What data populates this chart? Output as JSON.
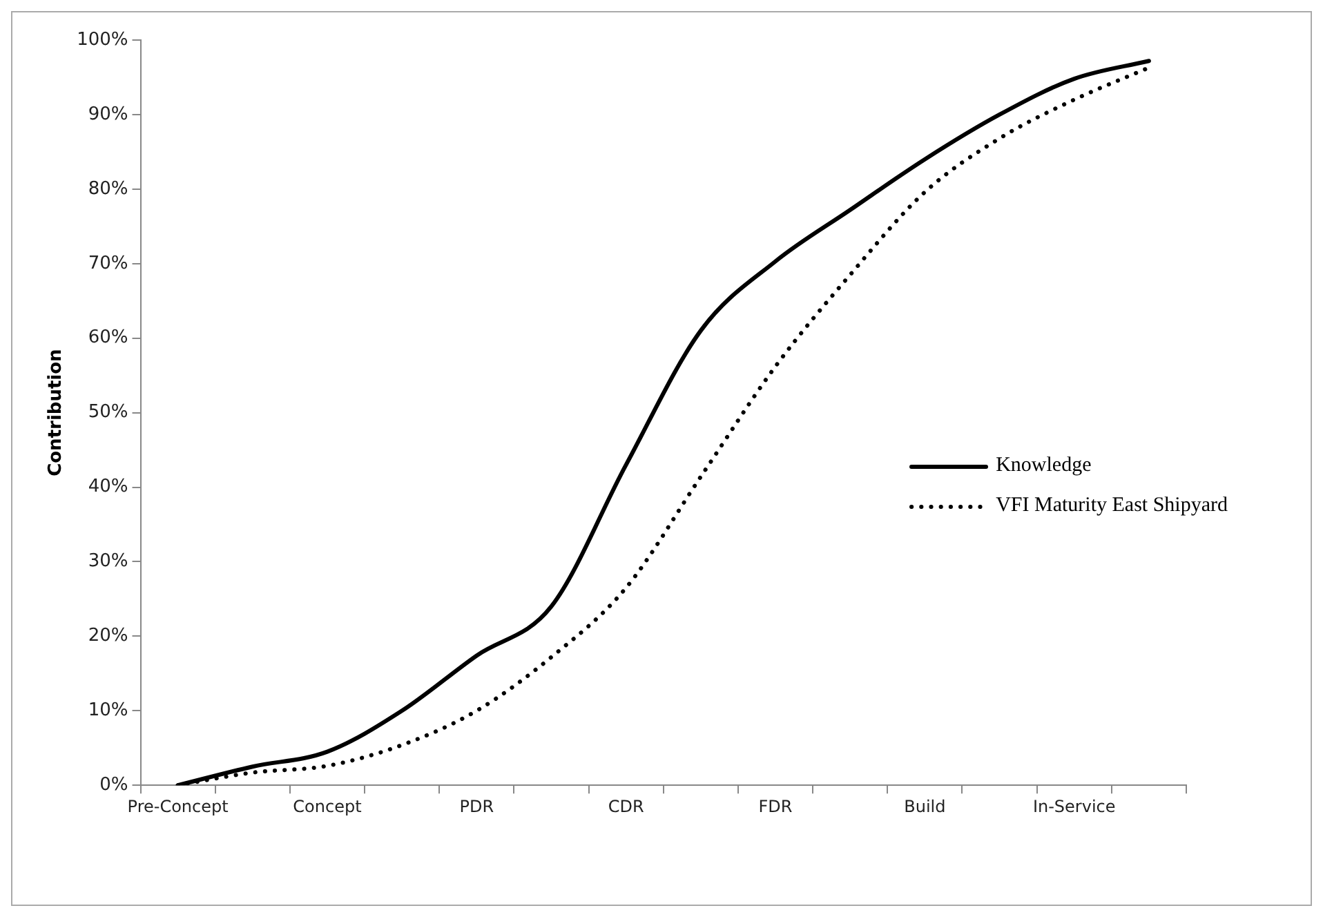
{
  "chart_data": {
    "type": "line",
    "ylabel": "Contribution",
    "categories": [
      "Pre-Concept",
      null,
      "Concept",
      null,
      "PDR",
      null,
      "CDR",
      null,
      "FDR",
      null,
      "Build",
      null,
      "In-Service",
      null
    ],
    "series": [
      {
        "name": "Knowledge",
        "color": "#000000",
        "line_style": "solid",
        "values": [
          0,
          2.5,
          4.5,
          10,
          17.4,
          24,
          43,
          61,
          70.3,
          77.2,
          84,
          90,
          94.8,
          97.2
        ]
      },
      {
        "name": "VFI Maturity East Shipyard",
        "color": "#000000",
        "line_style": "dotted",
        "values": [
          0,
          1.7,
          2.6,
          5.4,
          10,
          17.2,
          26.5,
          41.4,
          56.2,
          68.5,
          79.6,
          86.8,
          92,
          96.3
        ]
      }
    ],
    "ylim": [
      0,
      100
    ],
    "yticks": [
      {
        "value": 0,
        "label": "0%"
      },
      {
        "value": 10,
        "label": "10%"
      },
      {
        "value": 20,
        "label": "20%"
      },
      {
        "value": 30,
        "label": "30%"
      },
      {
        "value": 40,
        "label": "40%"
      },
      {
        "value": 50,
        "label": "50%"
      },
      {
        "value": 60,
        "label": "60%"
      },
      {
        "value": 70,
        "label": "70%"
      },
      {
        "value": 80,
        "label": "80%"
      },
      {
        "value": 90,
        "label": "90%"
      },
      {
        "value": 100,
        "label": "100%"
      }
    ],
    "grid": false,
    "legend": "right",
    "marker": "none"
  }
}
